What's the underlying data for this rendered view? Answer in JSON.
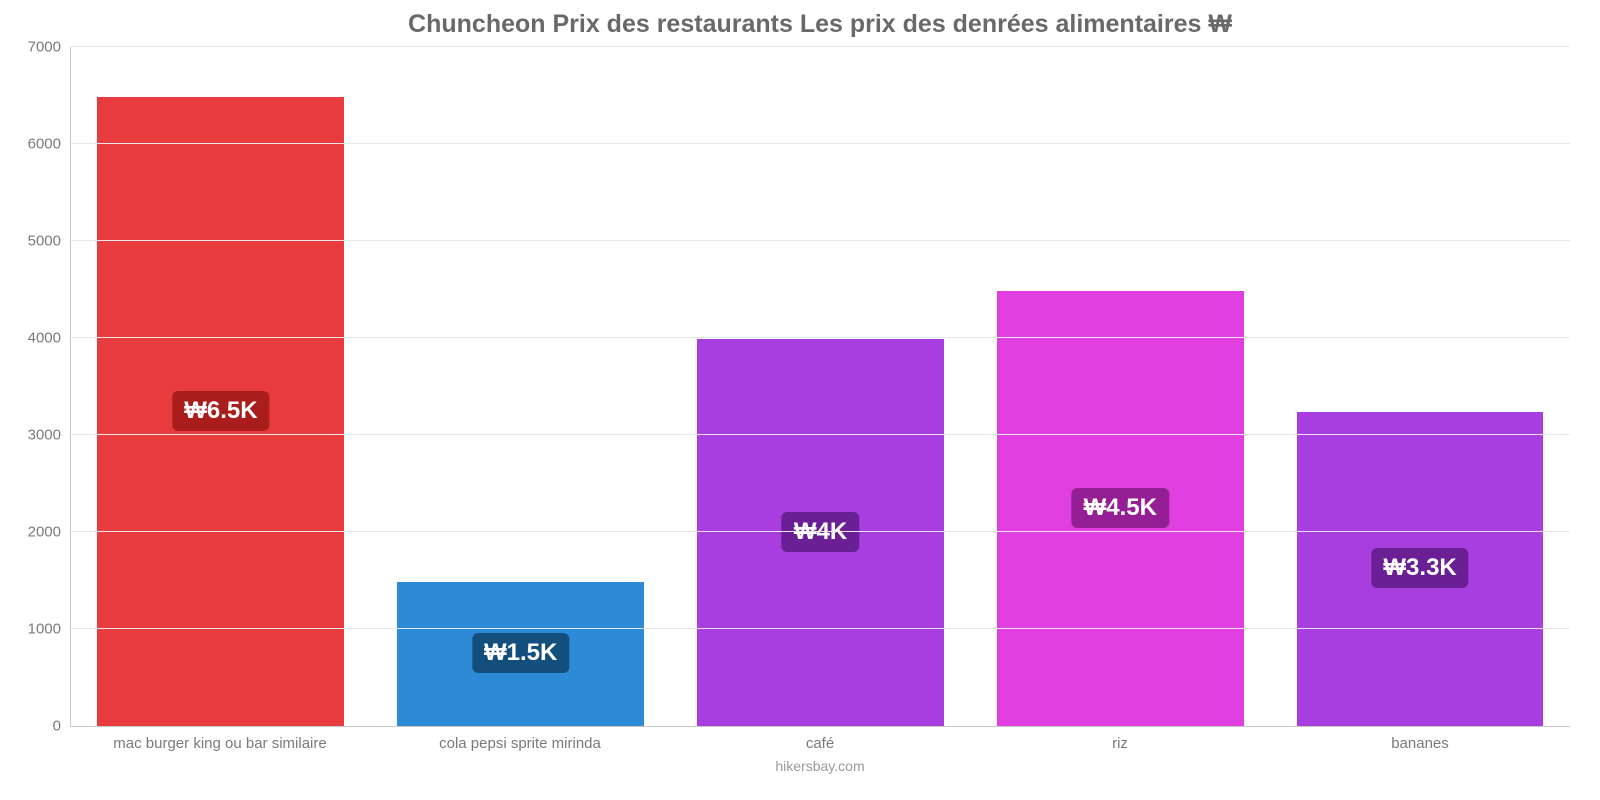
{
  "chart": {
    "type": "bar",
    "title": "Chuncheon Prix des restaurants Les prix des denrées alimentaires ₩",
    "title_fontsize": 25,
    "title_color": "#696969",
    "background_color": "#ffffff",
    "grid_color": "#e8e8e8",
    "axis_color": "#c8c8c8",
    "tick_label_color": "#7a7a7a",
    "tick_label_fontsize": 15,
    "y": {
      "min": 0,
      "max": 7000,
      "step": 1000,
      "ticks": [
        {
          "v": 0,
          "label": "0"
        },
        {
          "v": 1000,
          "label": "1000"
        },
        {
          "v": 2000,
          "label": "2000"
        },
        {
          "v": 3000,
          "label": "3000"
        },
        {
          "v": 4000,
          "label": "4000"
        },
        {
          "v": 5000,
          "label": "5000"
        },
        {
          "v": 6000,
          "label": "6000"
        },
        {
          "v": 7000,
          "label": "7000"
        }
      ]
    },
    "bar_width_pct": 83,
    "data_label_fontsize": 24,
    "bars": [
      {
        "category": "mac burger king ou bar similaire",
        "value": 6500,
        "label": "₩6.5K",
        "color": "#e83b3d",
        "label_bg": "#aa1d1d"
      },
      {
        "category": "cola pepsi sprite mirinda",
        "value": 1500,
        "label": "₩1.5K",
        "color": "#2c8ad6",
        "label_bg": "#134f7c"
      },
      {
        "category": "café",
        "value": 4000,
        "label": "₩4K",
        "color": "#a93ee0",
        "label_bg": "#6b1f94"
      },
      {
        "category": "riz",
        "value": 4500,
        "label": "₩4.5K",
        "color": "#e13ee0",
        "label_bg": "#941f94"
      },
      {
        "category": "bananes",
        "value": 3250,
        "label": "₩3.3K",
        "color": "#a93ee0",
        "label_bg": "#6b1f94"
      }
    ],
    "source": "hikersbay.com"
  }
}
